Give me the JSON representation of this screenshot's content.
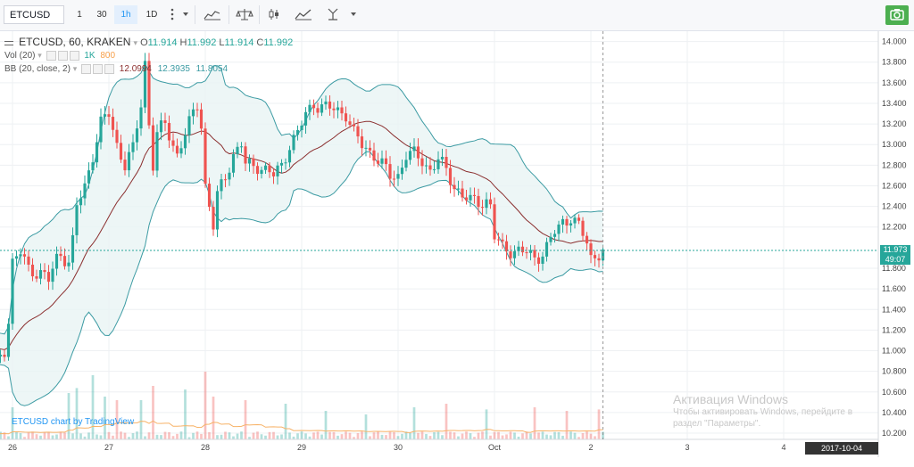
{
  "toolbar": {
    "symbol": "ETCUSD",
    "intervals": [
      "1",
      "30",
      "1h",
      "1D"
    ],
    "active_interval": "1h",
    "icons": [
      "more-vertical-icon",
      "chevron-down-icon",
      "indicators-icon",
      "compare-icon",
      "candles-icon",
      "line-style-icon",
      "fork-icon",
      "chevron-down-icon",
      "camera-icon"
    ]
  },
  "legend": {
    "title": "ETCUSD, 60, KRAKEN",
    "open_label": "O",
    "open": "11.914",
    "high_label": "H",
    "high": "11.992",
    "low_label": "L",
    "low": "11.914",
    "close_label": "C",
    "close": "11.992",
    "vol_label": "Vol (20)",
    "vol_v1": "1K",
    "vol_v2": "800",
    "bb_label": "BB (20, close, 2)",
    "bb_basis": "12.0994",
    "bb_upper": "12.3935",
    "bb_lower": "11.8054"
  },
  "watermark": "ETCUSD chart by TradingView",
  "activation": {
    "title": "Активация Windows",
    "line1": "Чтобы активировать Windows, перейдите в",
    "line2": "раздел \"Параметры\"."
  },
  "price_tags": {
    "last": "11.973",
    "countdown": "49:07"
  },
  "time_tag": "2017-10-04 16:00:00",
  "colors": {
    "up": "#26a69a",
    "down": "#ef5350",
    "bb_band": "#3c9ba3",
    "bb_fill": "#e8f4f4",
    "bb_basis": "#8b2f2f",
    "vol_ma": "#f7b267",
    "price_line": "#26a69a",
    "last_tag": "#26a69a",
    "count_tag": "#26a69a"
  },
  "chart_data": {
    "type": "candlestick",
    "symbol": "ETCUSD",
    "interval_minutes": 60,
    "exchange": "KRAKEN",
    "x_ticks": [
      "26",
      "27",
      "28",
      "29",
      "30",
      "Oct",
      "2",
      "3",
      "4"
    ],
    "y_ticks": [
      "14.000",
      "13.800",
      "13.600",
      "13.400",
      "13.200",
      "13.000",
      "12.800",
      "12.600",
      "12.400",
      "12.200",
      "11.800",
      "11.600",
      "11.400",
      "11.200",
      "11.000",
      "10.800",
      "10.600",
      "10.400",
      "10.200"
    ],
    "ylim": [
      10.14,
      14.1
    ],
    "bars_per_day": 24,
    "first_bar_offset": -12,
    "close_path": [
      [
        0,
        11.08
      ],
      [
        3,
        11.1
      ],
      [
        5,
        10.98
      ],
      [
        8,
        10.88
      ],
      [
        10,
        11.02
      ],
      [
        11,
        11.3
      ],
      [
        12,
        11.85
      ],
      [
        14,
        11.95
      ],
      [
        16,
        11.8
      ],
      [
        19,
        11.75
      ],
      [
        21,
        11.68
      ],
      [
        23,
        11.9
      ],
      [
        24,
        11.95
      ],
      [
        26,
        11.85
      ],
      [
        27,
        12.05
      ],
      [
        28,
        12.4
      ],
      [
        30,
        12.6
      ],
      [
        32,
        12.9
      ],
      [
        34,
        13.2
      ],
      [
        36,
        13.3
      ],
      [
        38,
        13.0
      ],
      [
        40,
        12.8
      ],
      [
        42,
        12.95
      ],
      [
        44,
        13.4
      ],
      [
        45,
        13.8
      ],
      [
        46,
        13.2
      ],
      [
        47,
        12.8
      ],
      [
        48,
        13.1
      ],
      [
        50,
        13.2
      ],
      [
        52,
        13.0
      ],
      [
        53,
        12.9
      ],
      [
        56,
        13.2
      ],
      [
        58,
        13.4
      ],
      [
        59,
        13.2
      ],
      [
        60,
        12.6
      ],
      [
        61,
        12.4
      ],
      [
        62,
        12.2
      ],
      [
        63,
        12.5
      ],
      [
        65,
        12.7
      ],
      [
        67,
        12.9
      ],
      [
        69,
        13.0
      ],
      [
        70,
        12.8
      ],
      [
        73,
        12.8
      ],
      [
        75,
        12.75
      ],
      [
        77,
        12.7
      ],
      [
        79,
        12.8
      ],
      [
        81,
        13.0
      ],
      [
        83,
        13.1
      ],
      [
        85,
        13.3
      ],
      [
        87,
        13.4
      ],
      [
        90,
        13.35
      ],
      [
        92,
        13.35
      ],
      [
        95,
        13.3
      ],
      [
        97,
        13.1
      ],
      [
        99,
        13.0
      ],
      [
        102,
        12.9
      ],
      [
        104,
        12.8
      ],
      [
        106,
        12.7
      ],
      [
        108,
        12.7
      ],
      [
        110,
        12.9
      ],
      [
        112,
        12.9
      ],
      [
        114,
        12.85
      ],
      [
        116,
        12.75
      ],
      [
        118,
        12.85
      ],
      [
        120,
        12.75
      ],
      [
        122,
        12.6
      ],
      [
        124,
        12.5
      ],
      [
        126,
        12.45
      ],
      [
        128,
        12.45
      ],
      [
        130,
        12.45
      ],
      [
        131,
        12.4
      ],
      [
        132,
        12.1
      ],
      [
        134,
        12.0
      ],
      [
        137,
        11.97
      ],
      [
        140,
        11.95
      ],
      [
        142,
        11.9
      ],
      [
        144,
        11.95
      ],
      [
        145,
        12.0
      ],
      [
        147,
        12.15
      ],
      [
        149,
        12.25
      ],
      [
        151,
        12.3
      ],
      [
        153,
        12.2
      ],
      [
        155,
        12.05
      ],
      [
        156,
        11.9
      ],
      [
        158,
        11.95
      ],
      [
        159,
        11.97
      ]
    ],
    "volume_spikes": [
      [
        12,
        0.45
      ],
      [
        26,
        0.65
      ],
      [
        28,
        0.72
      ],
      [
        32,
        0.9
      ],
      [
        35,
        0.6
      ],
      [
        38,
        0.55
      ],
      [
        44,
        0.55
      ],
      [
        47,
        0.75
      ],
      [
        55,
        0.7
      ],
      [
        60,
        0.95
      ],
      [
        62,
        0.6
      ],
      [
        70,
        0.55
      ],
      [
        80,
        0.5
      ],
      [
        90,
        0.4
      ],
      [
        100,
        0.35
      ],
      [
        112,
        0.45
      ],
      [
        120,
        0.5
      ],
      [
        130,
        0.42
      ],
      [
        142,
        0.45
      ],
      [
        150,
        0.4
      ],
      [
        158,
        0.42
      ]
    ],
    "indicators": [
      {
        "name": "Vol (20)",
        "values": [
          "1K",
          "800"
        ]
      },
      {
        "name": "BB (20, close, 2)",
        "values": [
          "12.0994",
          "12.3935",
          "11.8054"
        ]
      }
    ],
    "last_price": 11.973,
    "grid": true,
    "legend_position": "top-left"
  }
}
